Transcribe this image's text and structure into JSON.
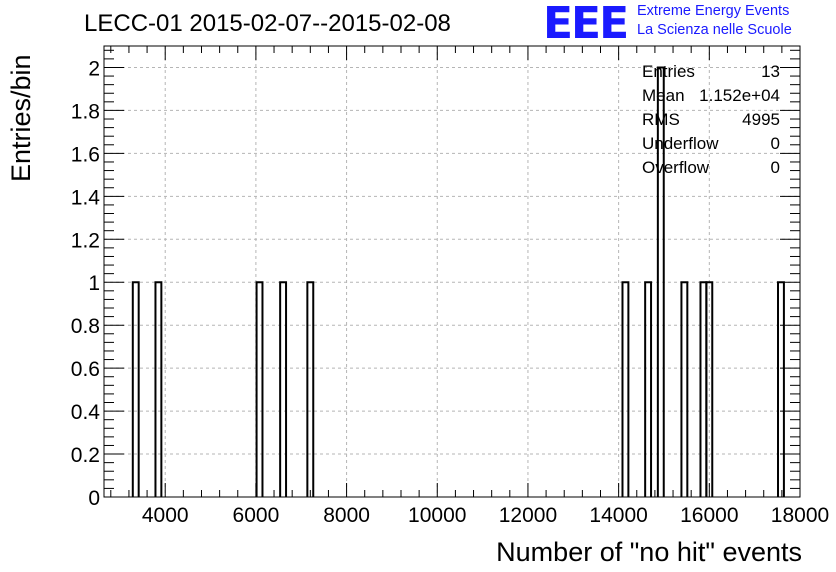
{
  "header": {
    "title": "LECC-01 2015-02-07--2015-02-08",
    "logo_mark": "EEE",
    "logo_line1": "Extreme Energy Events",
    "logo_line2": "La Scienza nelle Scuole"
  },
  "stats": [
    {
      "label": "Entries",
      "value": "13"
    },
    {
      "label": "Mean",
      "value": "1.152e+04"
    },
    {
      "label": "RMS",
      "value": "4995"
    },
    {
      "label": "Underflow",
      "value": "0"
    },
    {
      "label": "Overflow",
      "value": "0"
    }
  ],
  "colors": {
    "logo": "#1a1aff",
    "grid": "#b5b5b5",
    "line": "#000000"
  },
  "chart_data": {
    "type": "bar",
    "title": "LECC-01 2015-02-07--2015-02-08",
    "xlabel": "Number of \"no hit\" events",
    "ylabel": "Entries/bin",
    "xlim": [
      2650,
      18000
    ],
    "ylim": [
      0,
      2.1
    ],
    "grid": true,
    "bin_width": 130,
    "bins": [
      {
        "x": 3350,
        "count": 1
      },
      {
        "x": 3850,
        "count": 1
      },
      {
        "x": 6080,
        "count": 1
      },
      {
        "x": 6600,
        "count": 1
      },
      {
        "x": 7200,
        "count": 1
      },
      {
        "x": 14150,
        "count": 1
      },
      {
        "x": 14650,
        "count": 1
      },
      {
        "x": 14930,
        "count": 2
      },
      {
        "x": 15450,
        "count": 1
      },
      {
        "x": 15870,
        "count": 1
      },
      {
        "x": 16000,
        "count": 1
      },
      {
        "x": 17580,
        "count": 1
      }
    ],
    "x_ticks": [
      4000,
      6000,
      8000,
      10000,
      12000,
      14000,
      16000,
      18000
    ],
    "y_ticks": [
      0,
      0.2,
      0.4,
      0.6,
      0.8,
      1,
      1.2,
      1.4,
      1.6,
      1.8,
      2
    ],
    "x_tick_labels": [
      "4000",
      "6000",
      "8000",
      "10000",
      "12000",
      "14000",
      "16000",
      "18000"
    ],
    "y_tick_labels": [
      "0",
      "0.2",
      "0.4",
      "0.6",
      "0.8",
      "1",
      "1.2",
      "1.4",
      "1.6",
      "1.8",
      "2"
    ]
  },
  "labels": {
    "xlabel": "Number of \"no hit\" events",
    "ylabel": "Entries/bin"
  }
}
